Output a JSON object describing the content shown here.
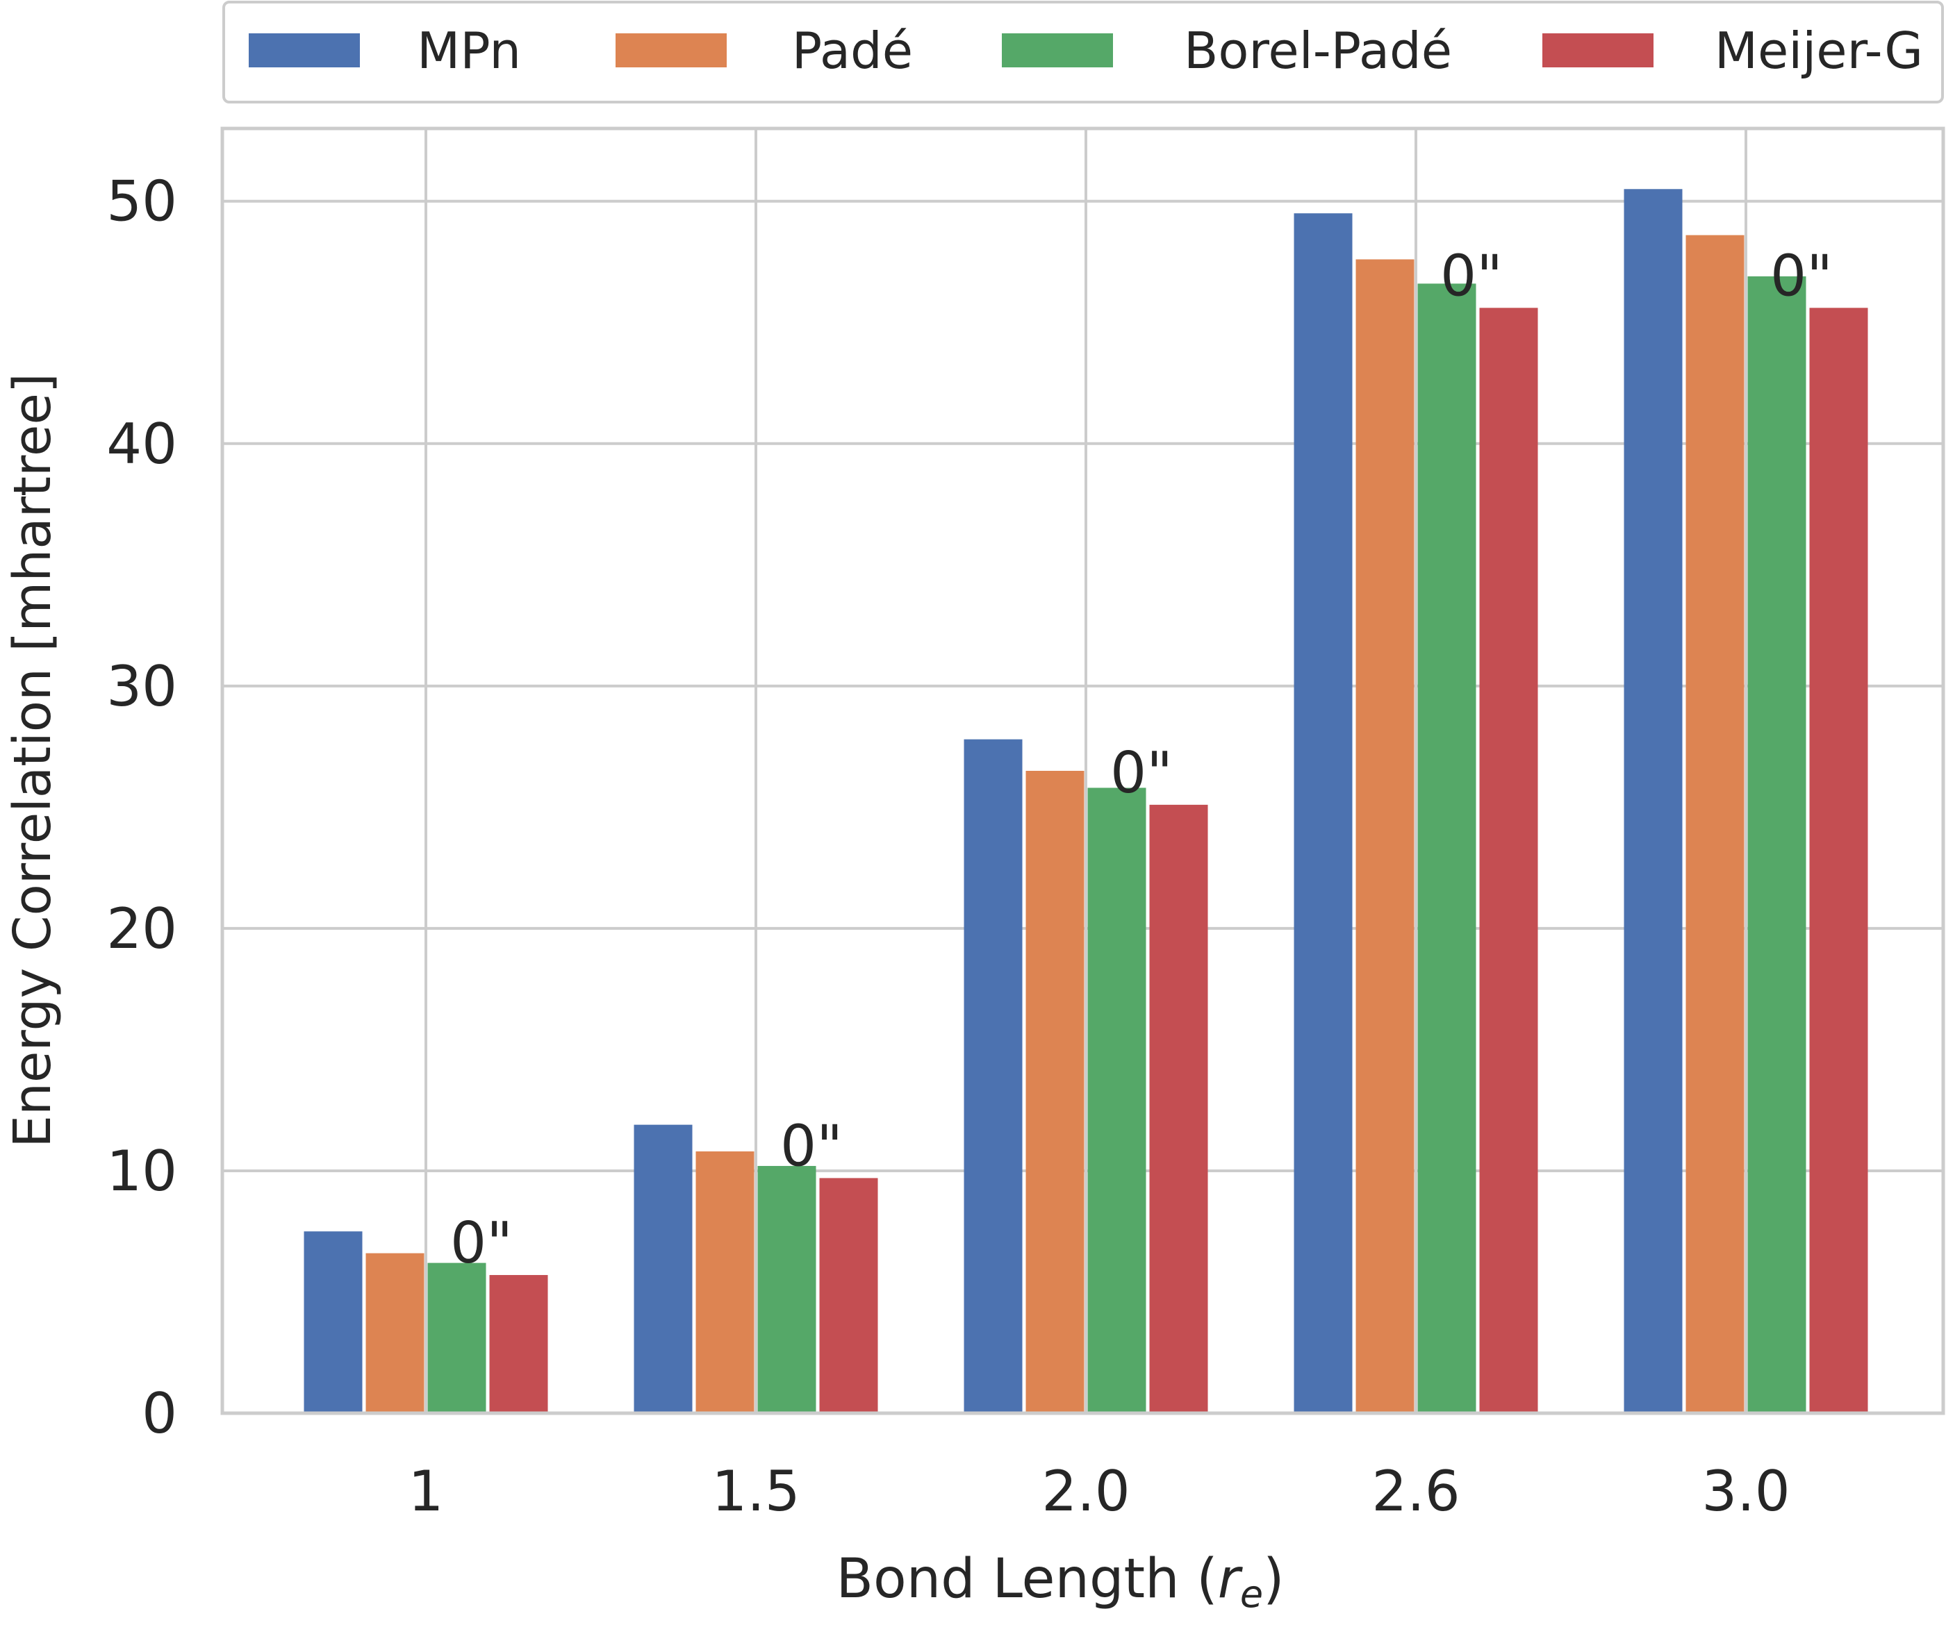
{
  "chart_data": {
    "type": "bar",
    "title": "",
    "xlabel_main": "Bond Length (",
    "xlabel_var": "r",
    "xlabel_sub": "e",
    "xlabel_end": ")",
    "ylabel": "Energy Correlation [mhartree]",
    "categories": [
      "1",
      "1.5",
      "2.0",
      "2.6",
      "3.0"
    ],
    "ylim": [
      0,
      53
    ],
    "yticks": [
      0,
      10,
      20,
      30,
      40,
      50
    ],
    "grid": true,
    "legend_position": "top",
    "series": [
      {
        "name": "MPn",
        "color": "#4C72B0",
        "values": [
          7.5,
          11.9,
          27.8,
          49.5,
          50.5
        ]
      },
      {
        "name": "Padé",
        "color": "#DD8452",
        "values": [
          6.6,
          10.8,
          26.5,
          47.6,
          48.6
        ]
      },
      {
        "name": "Borel-Padé",
        "color": "#55A868",
        "values": [
          6.2,
          10.2,
          25.8,
          46.6,
          46.9
        ]
      },
      {
        "name": "Meijer-G",
        "color": "#C44E52",
        "values": [
          5.7,
          9.7,
          25.1,
          45.6,
          45.6
        ]
      }
    ],
    "annotations": [
      "0\"",
      "0\"",
      "0\"",
      "0\"",
      "0\""
    ]
  }
}
